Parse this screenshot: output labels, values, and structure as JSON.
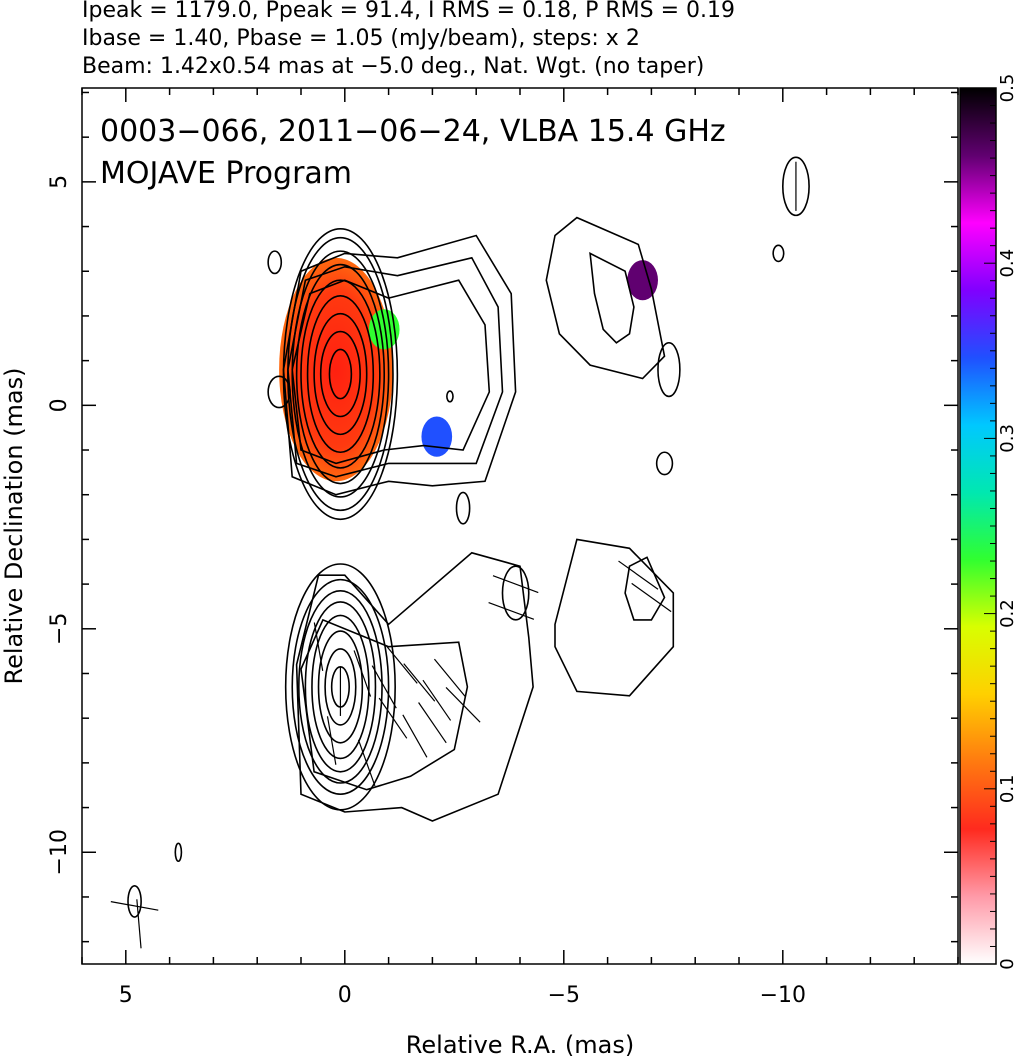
{
  "header": {
    "line1": "Ipeak = 1179.0, Ppeak = 91.4, I RMS = 0.18, P RMS = 0.19",
    "line2": "Ibase = 1.40, Pbase = 1.05 (mJy/beam), steps: x 2",
    "line3": "Beam: 1.42x0.54 mas at −5.0 deg., Nat. Wgt. (no taper)"
  },
  "chart_data": {
    "type": "heatmap",
    "title": "0003−066, 2011−06−24, VLBA 15.4 GHz",
    "subtitle": "MOJAVE Program",
    "xlabel": "Relative R.A. (mas)",
    "ylabel": "Relative Declination (mas)",
    "xlim": [
      6.0,
      -14.0
    ],
    "ylim": [
      -12.5,
      7.1
    ],
    "xticks": [
      5,
      0,
      -5,
      -10
    ],
    "xtick_labels": [
      "5",
      "0",
      "−5",
      "−10"
    ],
    "yticks": [
      5,
      0,
      -5,
      -10
    ],
    "ytick_labels": [
      "5",
      "0",
      "−5",
      "−10"
    ],
    "grid": false,
    "colorbar": {
      "min": 0,
      "max": 0.5,
      "ticks": [
        0,
        0.1,
        0.2,
        0.3,
        0.4,
        0.5
      ],
      "tick_labels": [
        "0",
        "0.1",
        "0.2",
        "0.3",
        "0.4",
        "0.5"
      ],
      "colors": [
        "#ffffff",
        "#ff9aa8",
        "#ff2a1e",
        "#ff7a10",
        "#ffd000",
        "#d8ff00",
        "#30ff30",
        "#00e8b0",
        "#00c8ff",
        "#2050ff",
        "#8000ff",
        "#ff00ff",
        "#600070",
        "#000000"
      ]
    },
    "image_regions": [
      {
        "name": "core",
        "cx": 0.2,
        "cy": 0.8,
        "rx": 1.3,
        "ry": 2.5,
        "value": 0.1
      },
      {
        "name": "inner-jet",
        "ra": [
          2.6,
          0.6
        ],
        "dec": [
          -1.0,
          1.8
        ],
        "value": 0.14
      },
      {
        "name": "jet-edge-green",
        "ra": -0.9,
        "dec": 1.7,
        "value": 0.22
      },
      {
        "name": "jet-edge-blue",
        "ra": -2.1,
        "dec": -0.7,
        "value": 0.36
      },
      {
        "name": "knot-ne",
        "ra": -6.8,
        "dec": 2.8,
        "value": 0.48
      }
    ],
    "contour_panels": [
      {
        "name": "upper",
        "center": [
          0.1,
          0.7
        ],
        "core_radii": [
          [
            0.25,
            0.55
          ],
          [
            0.45,
            0.95
          ],
          [
            0.6,
            1.35
          ],
          [
            0.75,
            1.75
          ],
          [
            0.9,
            2.1
          ],
          [
            1.0,
            2.45
          ],
          [
            1.1,
            2.75
          ],
          [
            1.2,
            3.05
          ],
          [
            1.3,
            3.25
          ]
        ],
        "outer_contours": [
          [
            [
              -1.2,
              3.3
            ],
            [
              -3.0,
              3.8
            ],
            [
              -3.8,
              2.5
            ],
            [
              -3.9,
              0.3
            ],
            [
              -3.2,
              -1.7
            ],
            [
              -2.0,
              -1.8
            ],
            [
              -1.0,
              -1.7
            ],
            [
              0.2,
              -2.0
            ],
            [
              1.2,
              -1.6
            ],
            [
              1.4,
              0.8
            ],
            [
              1.0,
              3.0
            ],
            [
              0.0,
              3.4
            ]
          ],
          [
            [
              -1.2,
              2.9
            ],
            [
              -2.9,
              3.3
            ],
            [
              -3.5,
              2.2
            ],
            [
              -3.6,
              0.3
            ],
            [
              -3.0,
              -1.3
            ],
            [
              -2.0,
              -1.3
            ],
            [
              -1.0,
              -1.3
            ],
            [
              0.2,
              -1.6
            ],
            [
              1.1,
              -1.3
            ],
            [
              1.3,
              0.8
            ],
            [
              0.9,
              2.8
            ],
            [
              0.0,
              3.1
            ]
          ],
          [
            [
              -1.0,
              2.4
            ],
            [
              -2.6,
              2.8
            ],
            [
              -3.2,
              1.8
            ],
            [
              -3.3,
              0.3
            ],
            [
              -2.7,
              -1.0
            ],
            [
              -1.8,
              -0.9
            ],
            [
              -0.9,
              -1.0
            ],
            [
              0.2,
              -1.3
            ],
            [
              1.0,
              -1.0
            ],
            [
              1.2,
              0.8
            ],
            [
              0.8,
              2.5
            ],
            [
              0.0,
              2.8
            ]
          ]
        ],
        "side_contours": [
          {
            "name": "east-blob",
            "points": [
              [
                -4.8,
                3.8
              ],
              [
                -5.3,
                4.2
              ],
              [
                -6.7,
                3.6
              ],
              [
                -7.0,
                2.6
              ],
              [
                -7.3,
                1.1
              ],
              [
                -6.8,
                0.6
              ],
              [
                -5.6,
                0.9
              ],
              [
                -4.9,
                1.6
              ],
              [
                -4.6,
                2.8
              ]
            ]
          },
          {
            "name": "east-blob-inner",
            "points": [
              [
                -5.6,
                3.4
              ],
              [
                -6.4,
                3.0
              ],
              [
                -6.6,
                2.2
              ],
              [
                -6.5,
                1.6
              ],
              [
                -6.2,
                1.4
              ],
              [
                -5.9,
                1.7
              ],
              [
                -5.7,
                2.5
              ]
            ]
          }
        ],
        "small_contours": [
          [
            -2.7,
            -2.3,
            0.15,
            0.35
          ],
          [
            -7.4,
            0.8,
            0.25,
            0.6
          ],
          [
            -7.3,
            -1.3,
            0.18,
            0.25
          ],
          [
            -10.3,
            4.9,
            0.3,
            0.65
          ],
          [
            -9.9,
            3.4,
            0.12,
            0.18
          ],
          [
            1.6,
            3.2,
            0.15,
            0.25
          ],
          [
            1.5,
            0.3,
            0.25,
            0.35
          ],
          [
            -2.4,
            0.2,
            0.07,
            0.12
          ]
        ]
      },
      {
        "name": "lower",
        "center": [
          0.1,
          -6.3
        ],
        "core_radii": [
          [
            0.2,
            0.45
          ],
          [
            0.35,
            0.85
          ],
          [
            0.5,
            1.25
          ],
          [
            0.65,
            1.6
          ],
          [
            0.8,
            1.9
          ],
          [
            0.95,
            2.15
          ],
          [
            1.1,
            2.4
          ],
          [
            1.25,
            2.75
          ]
        ],
        "outer_contours": [
          [
            [
              -1.0,
              -4.9
            ],
            [
              -2.9,
              -3.3
            ],
            [
              -4.0,
              -3.6
            ],
            [
              -4.2,
              -5.2
            ],
            [
              -4.3,
              -6.3
            ],
            [
              -3.5,
              -8.7
            ],
            [
              -2.0,
              -9.3
            ],
            [
              -1.3,
              -9.0
            ],
            [
              0.0,
              -9.1
            ],
            [
              1.0,
              -8.7
            ],
            [
              1.1,
              -5.8
            ],
            [
              0.6,
              -3.8
            ],
            [
              0.0,
              -3.8
            ]
          ],
          [
            [
              -1.0,
              -5.4
            ],
            [
              -2.6,
              -5.3
            ],
            [
              -2.8,
              -6.3
            ],
            [
              -2.5,
              -7.7
            ],
            [
              -1.5,
              -8.3
            ],
            [
              -0.5,
              -8.6
            ],
            [
              0.7,
              -8.2
            ],
            [
              1.0,
              -5.9
            ],
            [
              0.5,
              -4.8
            ]
          ]
        ],
        "side_contours": [
          {
            "name": "east-blob",
            "points": [
              [
                -4.8,
                -4.9
              ],
              [
                -5.3,
                -3.0
              ],
              [
                -6.5,
                -3.2
              ],
              [
                -7.5,
                -4.2
              ],
              [
                -7.5,
                -5.4
              ],
              [
                -6.5,
                -6.5
              ],
              [
                -5.3,
                -6.4
              ],
              [
                -4.8,
                -5.4
              ]
            ]
          },
          {
            "name": "hatched-knot",
            "points": [
              [
                -6.5,
                -3.6
              ],
              [
                -6.9,
                -3.4
              ],
              [
                -7.3,
                -4.3
              ],
              [
                -7.0,
                -4.8
              ],
              [
                -6.6,
                -4.8
              ],
              [
                -6.4,
                -4.2
              ]
            ]
          }
        ],
        "small_contours": [
          [
            -3.9,
            -4.2,
            0.3,
            0.6
          ],
          [
            4.8,
            -11.1,
            0.15,
            0.35
          ],
          [
            3.8,
            -10.0,
            0.07,
            0.2
          ]
        ]
      }
    ],
    "evpa_ticks": [
      {
        "ra": 0.1,
        "dec": -6.4,
        "angle": 0
      },
      {
        "ra": -0.4,
        "dec": -6.0,
        "angle": 20
      },
      {
        "ra": -0.9,
        "dec": -6.3,
        "angle": 30
      },
      {
        "ra": -1.3,
        "dec": -5.8,
        "angle": 40
      },
      {
        "ra": -1.7,
        "dec": -6.2,
        "angle": 40
      },
      {
        "ra": -2.1,
        "dec": -6.6,
        "angle": 35
      },
      {
        "ra": -2.4,
        "dec": -6.1,
        "angle": 40
      },
      {
        "ra": -1.1,
        "dec": -7.0,
        "angle": 35
      },
      {
        "ra": -1.6,
        "dec": -7.4,
        "angle": 30
      },
      {
        "ra": -2.0,
        "dec": -7.1,
        "angle": 35
      },
      {
        "ra": 0.3,
        "dec": -7.5,
        "angle": 10
      },
      {
        "ra": 0.6,
        "dec": -5.4,
        "angle": 10
      },
      {
        "ra": -0.5,
        "dec": -8.0,
        "angle": 20
      },
      {
        "ra": -2.7,
        "dec": -6.7,
        "angle": 45
      },
      {
        "ra": -3.9,
        "dec": -4.0,
        "angle": 70
      },
      {
        "ra": -3.8,
        "dec": -4.6,
        "angle": 70
      },
      {
        "ra": -6.7,
        "dec": -3.8,
        "angle": 55
      },
      {
        "ra": -7.0,
        "dec": -4.3,
        "angle": 55
      },
      {
        "ra": 4.8,
        "dec": -11.2,
        "angle": 80
      },
      {
        "ra": 4.7,
        "dec": -11.6,
        "angle": 5
      },
      {
        "ra": -10.3,
        "dec": 4.9,
        "angle": 0
      }
    ]
  }
}
